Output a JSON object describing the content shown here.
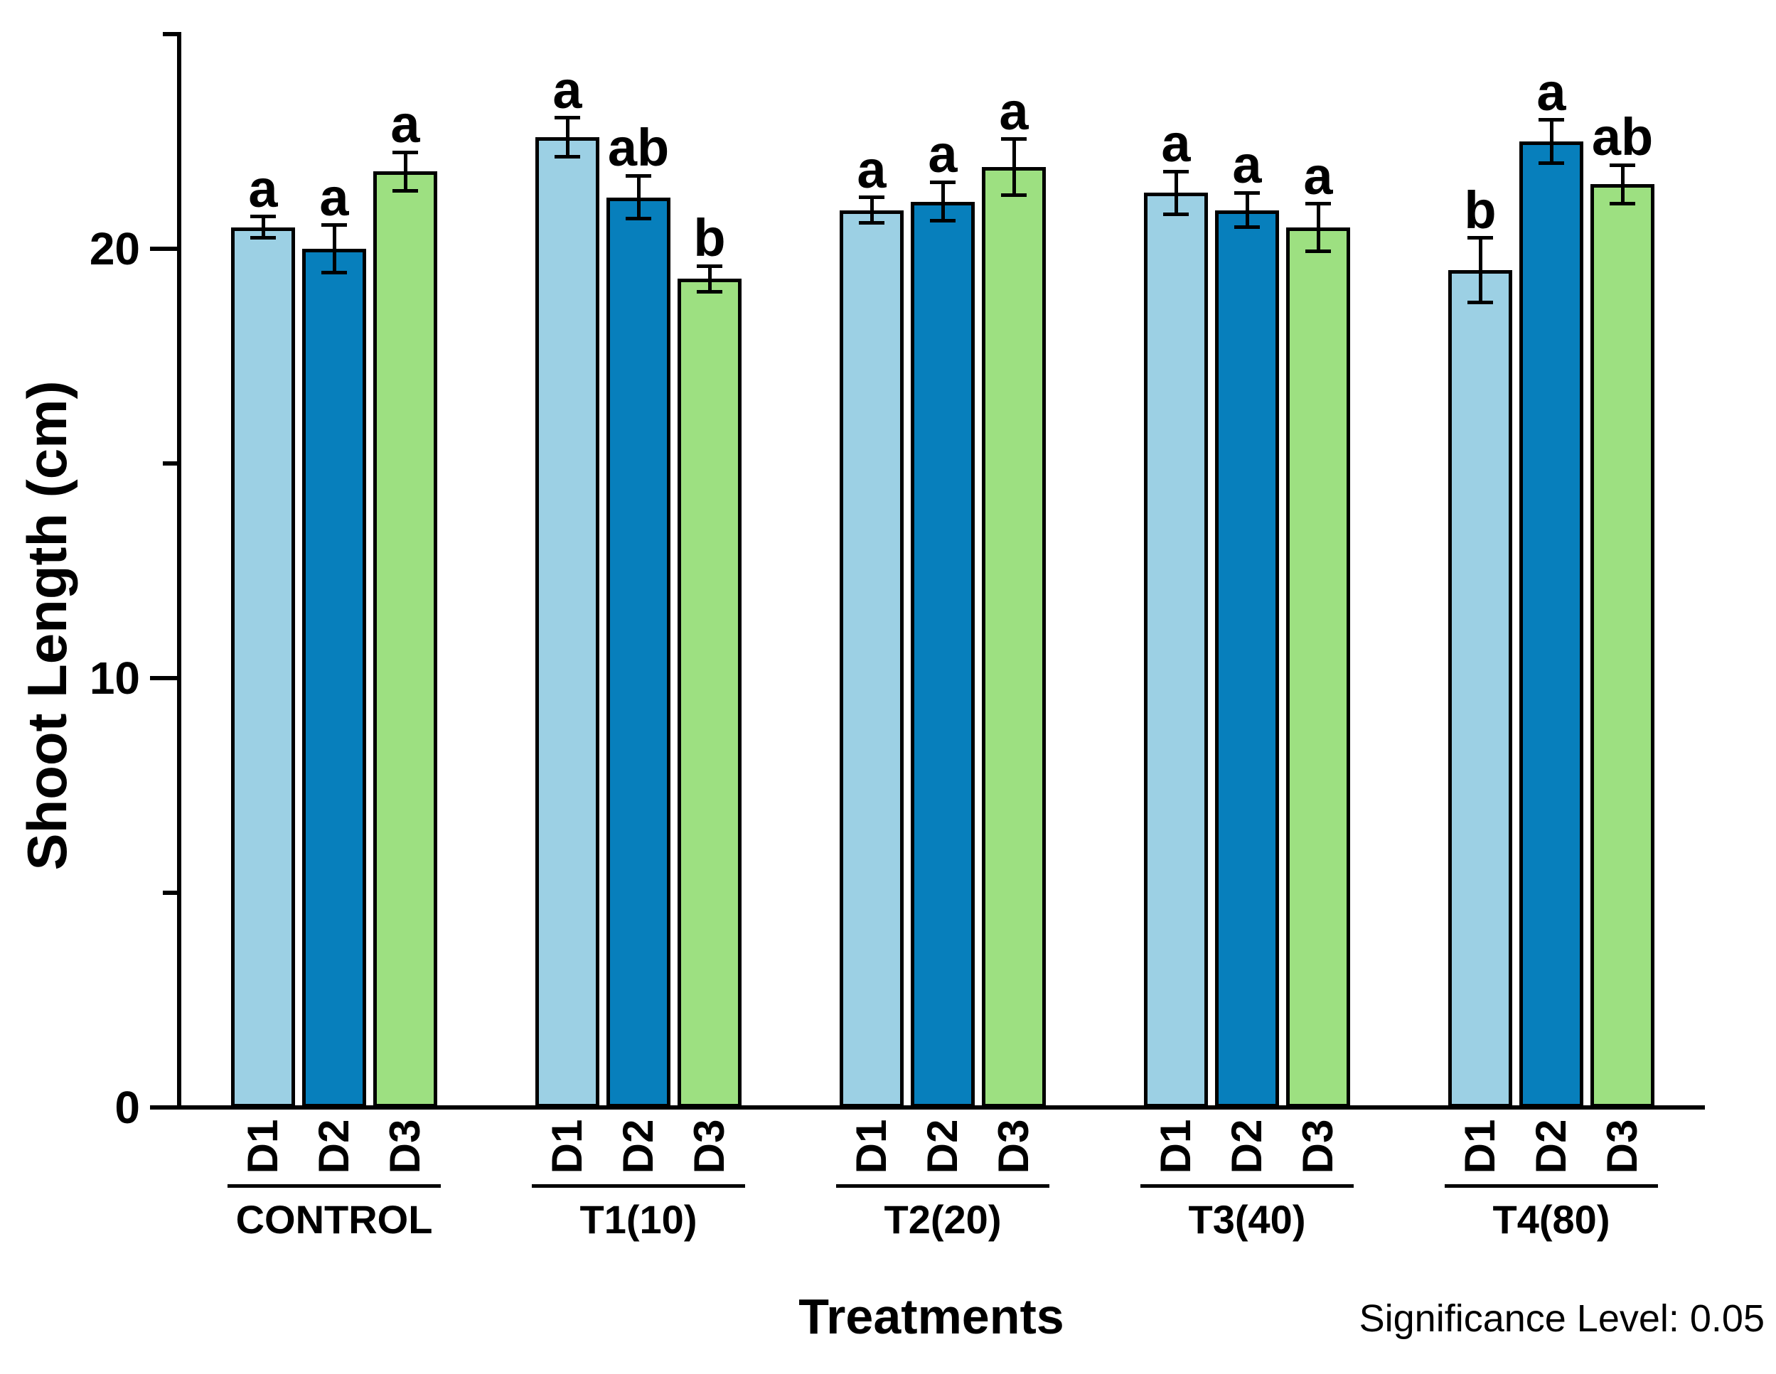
{
  "figure": {
    "ylabel": "Shoot Length (cm)",
    "xlabel": "Treatments",
    "note": "Significance Level: 0.05"
  },
  "chart_data": {
    "type": "bar",
    "title": "",
    "ylabel": "Shoot Length (cm)",
    "xlabel": "Treatments",
    "annotation": "Significance Level: 0.05",
    "ylim": [
      0,
      25
    ],
    "yticks_major": [
      0,
      10,
      20
    ],
    "yticks_minor": [
      5,
      15,
      25
    ],
    "grid": false,
    "legend_position": "none",
    "error_bars": true,
    "categories": [
      "CONTROL",
      "T1(10)",
      "T2(20)",
      "T3(40)",
      "T4(80)"
    ],
    "series": [
      {
        "name": "D1",
        "color": "#9CD0E4",
        "values": [
          20.5,
          22.6,
          20.9,
          21.3,
          19.5
        ],
        "errors": [
          0.25,
          0.45,
          0.3,
          0.5,
          0.75
        ],
        "sig_letters": [
          "a",
          "a",
          "a",
          "a",
          "b"
        ]
      },
      {
        "name": "D2",
        "color": "#077FBC",
        "values": [
          20.0,
          21.2,
          21.1,
          20.9,
          22.5
        ],
        "errors": [
          0.55,
          0.5,
          0.45,
          0.4,
          0.5
        ],
        "sig_letters": [
          "a",
          "ab",
          "a",
          "a",
          "a"
        ]
      },
      {
        "name": "D3",
        "color": "#9DE081",
        "values": [
          21.8,
          19.3,
          21.9,
          20.5,
          21.5
        ],
        "errors": [
          0.45,
          0.3,
          0.65,
          0.55,
          0.45
        ],
        "sig_letters": [
          "a",
          "b",
          "a",
          "a",
          "ab"
        ]
      }
    ],
    "axis_color": "#000000"
  }
}
